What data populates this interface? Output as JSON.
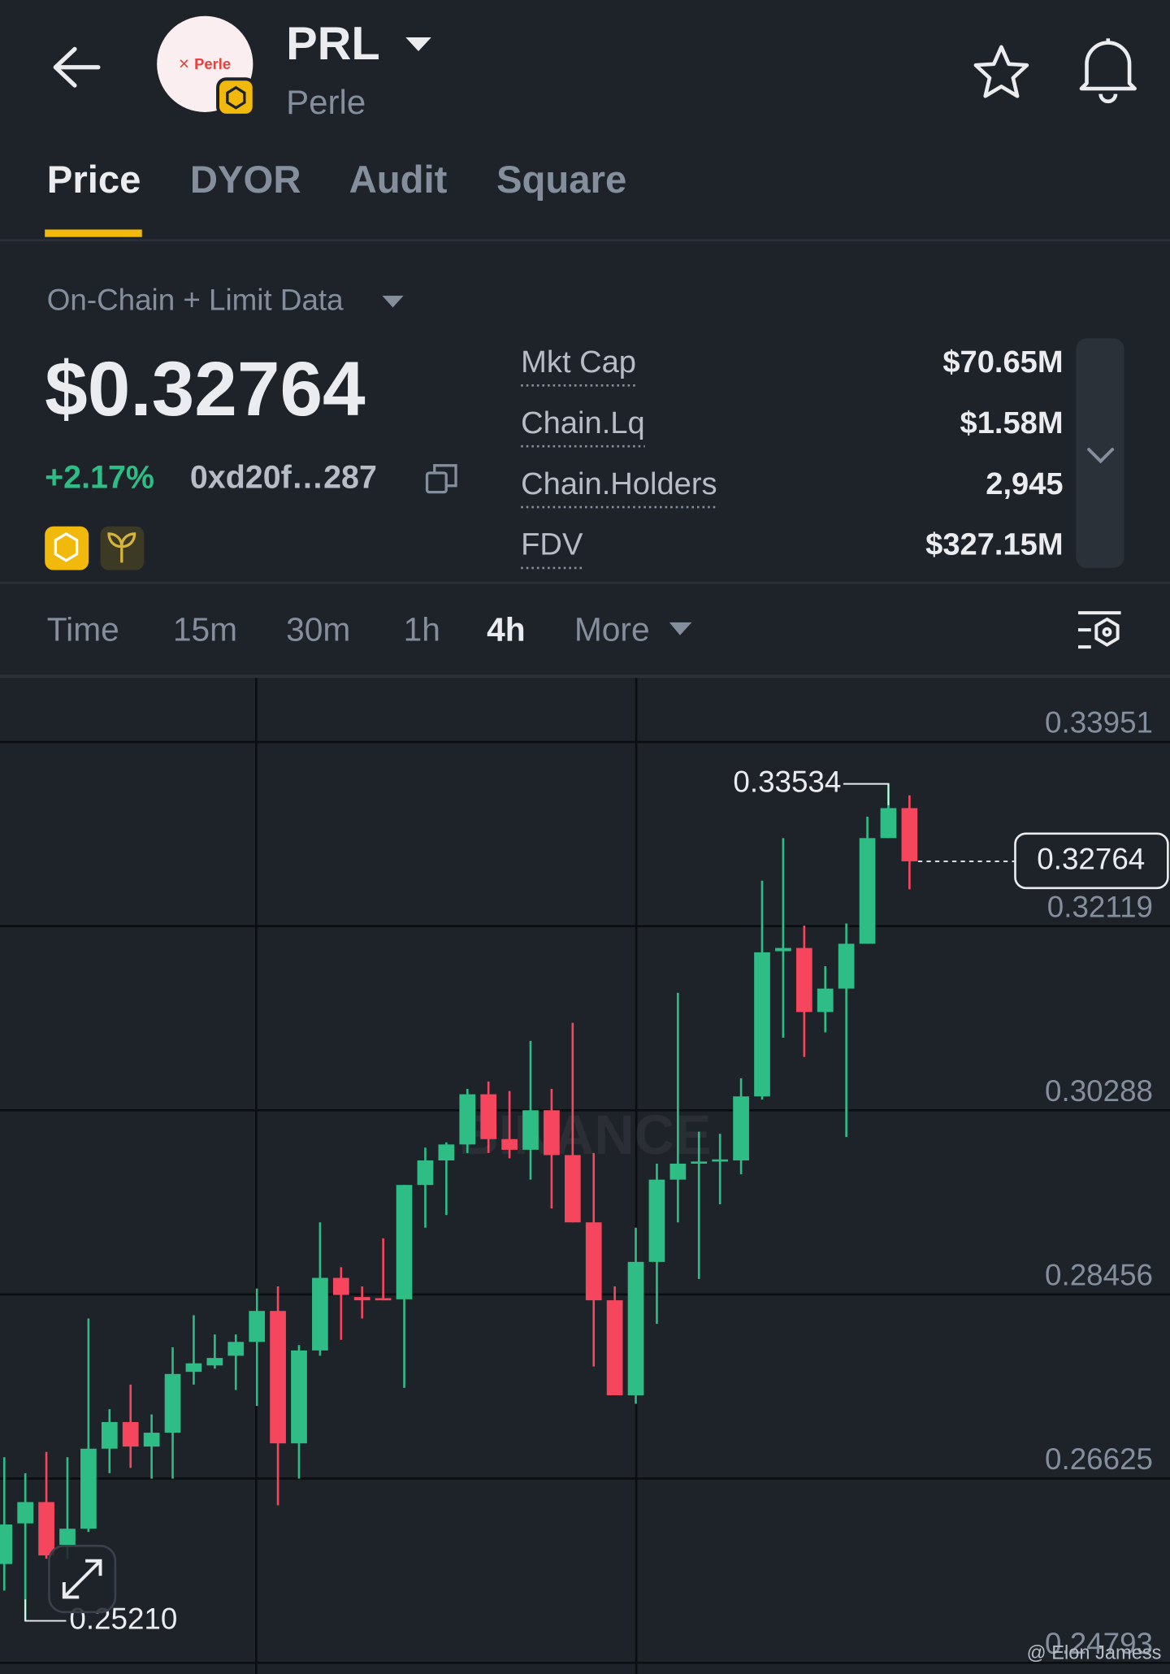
{
  "header": {
    "symbol": "PRL",
    "name": "Perle",
    "logo_text": "Perle"
  },
  "tabs": [
    "Price",
    "DYOR",
    "Audit",
    "Square"
  ],
  "data_source": "On-Chain + Limit Data",
  "price": "$0.32764",
  "change": "+2.17%",
  "address": "0xd20f…287",
  "stats": [
    {
      "label": "Mkt Cap",
      "value": "$70.65M"
    },
    {
      "label": "Chain.Lq",
      "value": "$1.58M"
    },
    {
      "label": "Chain.Holders",
      "value": "2,945"
    },
    {
      "label": "FDV",
      "value": "$327.15M"
    }
  ],
  "timeframes": [
    "Time",
    "15m",
    "30m",
    "1h",
    "4h",
    "More"
  ],
  "chart_data": {
    "type": "candlestick",
    "up_color": "#2ebd85",
    "down_color": "#f6465d",
    "watermark": "BINANCE",
    "ylim": [
      0.24681,
      0.34588
    ],
    "yticks": [
      0.33951,
      0.32119,
      0.30288,
      0.28456,
      0.26625,
      0.24793
    ],
    "grid": true,
    "open": [
      0.25775,
      0.26179,
      0.26391,
      0.25966,
      0.26126,
      0.26922,
      0.27187,
      0.26943,
      0.27081,
      0.27686,
      0.2775,
      0.27846,
      0.27984,
      0.28292,
      0.26975,
      0.27899,
      0.28621,
      0.2843,
      0.28419,
      0.28408,
      0.29545,
      0.29789,
      0.29948,
      0.30447,
      0.30001,
      0.29895,
      0.30288,
      0.29842,
      0.29173,
      0.28398,
      0.27453,
      0.2878,
      0.29598,
      0.29757,
      0.29778,
      0.29789,
      0.30426,
      0.3187,
      0.31902,
      0.31265,
      0.31498,
      0.31944,
      0.32995,
      0.33293
    ],
    "high": [
      0.26837,
      0.26678,
      0.2689,
      0.26837,
      0.28217,
      0.27315,
      0.27559,
      0.27262,
      0.27931,
      0.28249,
      0.28058,
      0.28058,
      0.28515,
      0.28536,
      0.27952,
      0.29173,
      0.28727,
      0.28536,
      0.29014,
      0.29545,
      0.29916,
      0.29969,
      0.305,
      0.30574,
      0.30479,
      0.30978,
      0.305,
      0.31158,
      0.29863,
      0.28536,
      0.2912,
      0.29757,
      0.31456,
      0.30075,
      0.30054,
      0.30606,
      0.32571,
      0.32995,
      0.32125,
      0.31721,
      0.32146,
      0.33208,
      0.33534,
      0.3342
    ],
    "low": [
      0.2551,
      0.2521,
      0.25828,
      0.25828,
      0.26094,
      0.26678,
      0.26731,
      0.26625,
      0.26625,
      0.27559,
      0.27718,
      0.27506,
      0.27347,
      0.26359,
      0.26625,
      0.27846,
      0.28005,
      0.28217,
      0.28398,
      0.27527,
      0.2912,
      0.29247,
      0.29863,
      0.29863,
      0.2981,
      0.29598,
      0.29311,
      0.29173,
      0.27739,
      0.27453,
      0.27368,
      0.28164,
      0.29173,
      0.2861,
      0.29353,
      0.29651,
      0.30394,
      0.3101,
      0.30819,
      0.31063,
      0.30022,
      0.31944,
      0.32995,
      0.32486
    ],
    "close": [
      0.26168,
      0.26391,
      0.2586,
      0.26126,
      0.26922,
      0.27187,
      0.26943,
      0.27081,
      0.27665,
      0.27771,
      0.27824,
      0.27984,
      0.28292,
      0.26975,
      0.27899,
      0.28621,
      0.28451,
      0.28398,
      0.28398,
      0.29545,
      0.29789,
      0.29948,
      0.30447,
      0.30001,
      0.29895,
      0.30288,
      0.29842,
      0.29173,
      0.28398,
      0.27453,
      0.2878,
      0.29598,
      0.29757,
      0.29778,
      0.29799,
      0.30426,
      0.31859,
      0.31902,
      0.31265,
      0.31498,
      0.31944,
      0.32995,
      0.33293,
      0.32764
    ],
    "high_marker": {
      "value": 0.33534,
      "label": "0.33534"
    },
    "low_marker": {
      "value": 0.2521,
      "label": "0.25210"
    },
    "last_price": {
      "value": 0.32764,
      "label": "0.32764"
    }
  },
  "credit": "@ Elon Jamess"
}
